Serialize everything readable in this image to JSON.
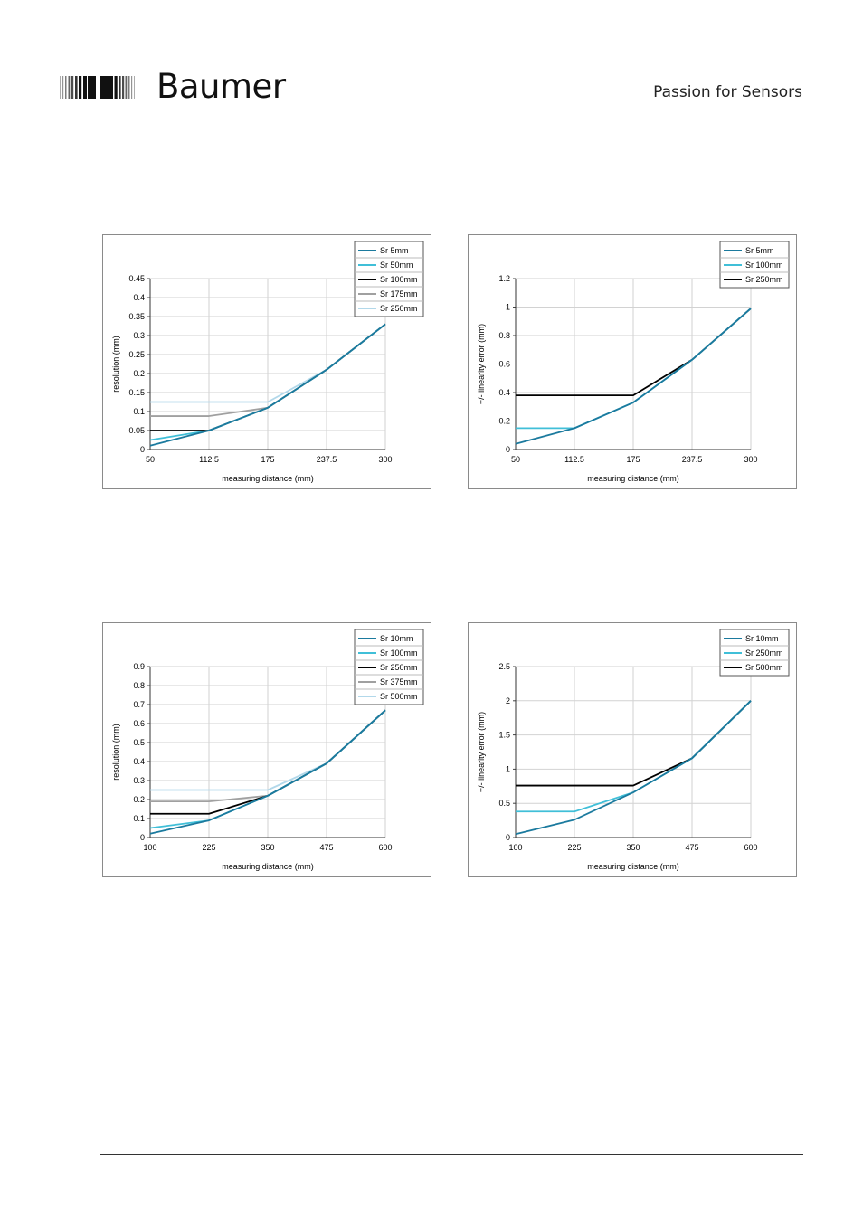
{
  "header": {
    "brand": "Baumer",
    "tagline": "Passion for Sensors"
  },
  "chart_data": [
    {
      "type": "line",
      "title": "",
      "xlabel": "measuring distance (mm)",
      "ylabel": "resolution (mm)",
      "x": [
        50,
        112.5,
        175,
        237.5,
        300
      ],
      "x_ticks": [
        "50",
        "112.5",
        "175",
        "237.5",
        "300"
      ],
      "y_ticks": [
        "0",
        "0.05",
        "0.1",
        "0.15",
        "0.2",
        "0.25",
        "0.3",
        "0.35",
        "0.4",
        "0.45"
      ],
      "ylim": [
        0,
        0.45
      ],
      "grid": true,
      "legend_position": "top-right",
      "series": [
        {
          "name": "Sr 5mm",
          "color": "#1b7a9e",
          "values": [
            0.01,
            0.05,
            0.11,
            0.21,
            0.33
          ]
        },
        {
          "name": "Sr 50mm",
          "color": "#40bfd8",
          "values": [
            0.025,
            0.05,
            0.11,
            0.21,
            0.33
          ]
        },
        {
          "name": "Sr 100mm",
          "color": "#000000",
          "values": [
            0.05,
            0.05,
            0.11,
            0.21,
            0.33
          ]
        },
        {
          "name": "Sr 175mm",
          "color": "#a0a0a0",
          "values": [
            0.088,
            0.088,
            0.11,
            0.21,
            0.33
          ]
        },
        {
          "name": "Sr 250mm",
          "color": "#b2d8ea",
          "values": [
            0.125,
            0.125,
            0.125,
            0.21,
            0.33
          ]
        }
      ]
    },
    {
      "type": "line",
      "title": "",
      "xlabel": "measuring distance (mm)",
      "ylabel": "+/- linearity error (mm)",
      "x": [
        50,
        112.5,
        175,
        237.5,
        300
      ],
      "x_ticks": [
        "50",
        "112.5",
        "175",
        "237.5",
        "300"
      ],
      "y_ticks": [
        "0",
        "0.2",
        "0.4",
        "0.6",
        "0.8",
        "1",
        "1.2"
      ],
      "ylim": [
        0,
        1.2
      ],
      "grid": true,
      "legend_position": "top-right",
      "series": [
        {
          "name": "Sr 5mm",
          "color": "#1b7a9e",
          "values": [
            0.04,
            0.15,
            0.33,
            0.63,
            0.99
          ]
        },
        {
          "name": "Sr 100mm",
          "color": "#40bfd8",
          "values": [
            0.15,
            0.15,
            0.33,
            0.63,
            0.99
          ]
        },
        {
          "name": "Sr 250mm",
          "color": "#000000",
          "values": [
            0.38,
            0.38,
            0.38,
            0.63,
            0.99
          ]
        }
      ]
    },
    {
      "type": "line",
      "title": "",
      "xlabel": "measuring distance (mm)",
      "ylabel": "resolution (mm)",
      "x": [
        100,
        225,
        350,
        475,
        600
      ],
      "x_ticks": [
        "100",
        "225",
        "350",
        "475",
        "600"
      ],
      "y_ticks": [
        "0",
        "0.1",
        "0.2",
        "0.3",
        "0.4",
        "0.5",
        "0.6",
        "0.7",
        "0.8",
        "0.9"
      ],
      "ylim": [
        0,
        0.9
      ],
      "grid": true,
      "legend_position": "top-right",
      "series": [
        {
          "name": "Sr 10mm",
          "color": "#1b7a9e",
          "values": [
            0.02,
            0.09,
            0.22,
            0.39,
            0.67
          ]
        },
        {
          "name": "Sr 100mm",
          "color": "#40bfd8",
          "values": [
            0.05,
            0.09,
            0.22,
            0.39,
            0.67
          ]
        },
        {
          "name": "Sr 250mm",
          "color": "#000000",
          "values": [
            0.125,
            0.125,
            0.22,
            0.39,
            0.67
          ]
        },
        {
          "name": "Sr 375mm",
          "color": "#a0a0a0",
          "values": [
            0.19,
            0.19,
            0.22,
            0.39,
            0.67
          ]
        },
        {
          "name": "Sr 500mm",
          "color": "#b2d8ea",
          "values": [
            0.25,
            0.25,
            0.25,
            0.39,
            0.67
          ]
        }
      ]
    },
    {
      "type": "line",
      "title": "",
      "xlabel": "measuring distance (mm)",
      "ylabel": "+/- linearity error (mm)",
      "x": [
        100,
        225,
        350,
        475,
        600
      ],
      "x_ticks": [
        "100",
        "225",
        "350",
        "475",
        "600"
      ],
      "y_ticks": [
        "0",
        "0.5",
        "1",
        "1.5",
        "2",
        "2.5"
      ],
      "ylim": [
        0,
        2.5
      ],
      "grid": true,
      "legend_position": "top-right",
      "series": [
        {
          "name": "Sr 10mm",
          "color": "#1b7a9e",
          "values": [
            0.05,
            0.26,
            0.66,
            1.16,
            2.0
          ]
        },
        {
          "name": "Sr 250mm",
          "color": "#40bfd8",
          "values": [
            0.38,
            0.38,
            0.66,
            1.16,
            2.0
          ]
        },
        {
          "name": "Sr 500mm",
          "color": "#000000",
          "values": [
            0.76,
            0.76,
            0.76,
            1.16,
            2.0
          ]
        }
      ]
    }
  ]
}
